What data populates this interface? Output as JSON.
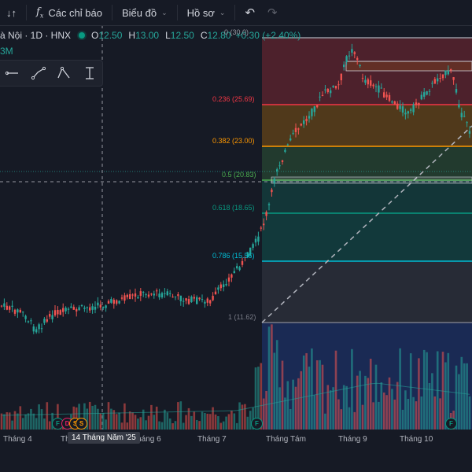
{
  "toolbar": {
    "compare_icon_label": "↓↑",
    "indicators_label": "Các chỉ báo",
    "chart_type_label": "Biểu đồ",
    "profile_label": "Hồ sơ"
  },
  "symbol": {
    "name": "à Nội · 1D · HNX",
    "open_key": "O",
    "open": "12.50",
    "high_key": "H",
    "high": "13.00",
    "low_key": "L",
    "low": "12.50",
    "close_key": "C",
    "close": "12.80",
    "change": "+0.30 (+2.40%)",
    "volume": "3M"
  },
  "fibonacci": [
    {
      "label": "0 (30.0)",
      "color": "#9598a1"
    },
    {
      "label": "0.236 (25.69)",
      "color": "#f23645"
    },
    {
      "label": "0.382 (23.00)",
      "color": "#ff9800"
    },
    {
      "label": "0.5 (20.83)",
      "color": "#4caf50"
    },
    {
      "label": "0.618 (18.65)",
      "color": "#089981"
    },
    {
      "label": "0.786 (15.56)",
      "color": "#00bcd4"
    },
    {
      "label": "1 (11.62)",
      "color": "#787b86"
    }
  ],
  "xaxis": {
    "labels": [
      "Tháng 4",
      "Th",
      "Tháng 6",
      "Tháng 7",
      "Tháng Tám",
      "Tháng 9",
      "Tháng 10"
    ],
    "crosshair_date": "14 Tháng Năm '25"
  },
  "markers": [
    "F",
    "D",
    "S",
    "S",
    "F",
    "F"
  ],
  "colors": {
    "up": "#26a69a",
    "down": "#ef5350",
    "background": "#161a25"
  }
}
